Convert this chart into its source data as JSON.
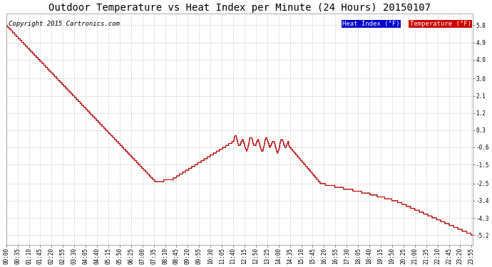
{
  "title": "Outdoor Temperature vs Heat Index per Minute (24 Hours) 20150107",
  "copyright_text": "Copyright 2015 Cartronics.com",
  "legend_labels": [
    "Heat Index (°F)",
    "Temperature (°F)"
  ],
  "legend_bg_colors": [
    "#0000cc",
    "#cc0000"
  ],
  "legend_text_color": "#ffffff",
  "background_color": "#ffffff",
  "plot_bg_color": "#ffffff",
  "grid_color": "#aaaaaa",
  "temp_line_color": "#cc0000",
  "heat_line_color": "#333333",
  "ylim": [
    -5.7,
    6.4
  ],
  "yticks": [
    5.8,
    4.9,
    4.0,
    3.0,
    2.1,
    1.2,
    0.3,
    -0.6,
    -1.5,
    -2.5,
    -3.4,
    -4.3,
    -5.2
  ],
  "xtick_labels": [
    "00:00",
    "00:35",
    "01:10",
    "01:45",
    "02:20",
    "02:55",
    "03:30",
    "04:05",
    "04:40",
    "05:15",
    "05:50",
    "06:25",
    "07:00",
    "07:35",
    "08:10",
    "08:45",
    "09:20",
    "09:55",
    "10:30",
    "11:05",
    "11:40",
    "12:15",
    "12:50",
    "13:25",
    "14:00",
    "14:35",
    "15:10",
    "15:45",
    "16:20",
    "16:55",
    "17:30",
    "18:05",
    "18:40",
    "19:15",
    "19:50",
    "20:25",
    "21:00",
    "21:35",
    "22:10",
    "22:45",
    "23:20",
    "23:55"
  ],
  "title_fontsize": 10,
  "tick_fontsize": 5.5,
  "copyright_fontsize": 6.5,
  "legend_fontsize": 6.5
}
